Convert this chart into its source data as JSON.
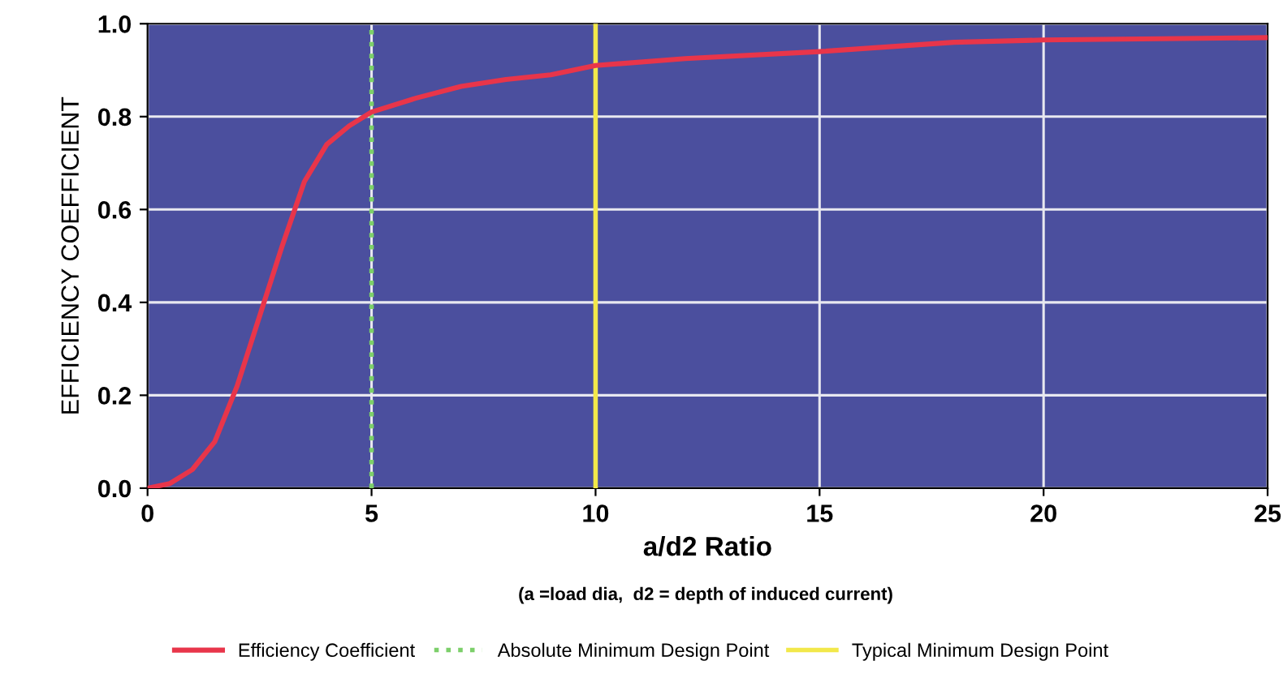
{
  "chart_data": {
    "type": "line",
    "xlabel": "a/d2 Ratio",
    "ylabel": "EFFICIENCY COEFFICIENT",
    "annotations": [
      "(a =load dia,  d2 = depth of induced current)"
    ],
    "series": [
      {
        "name": "Efficiency Coefficient",
        "color": "#e8354a",
        "x": [
          0,
          0.5,
          1,
          1.5,
          2,
          2.5,
          3,
          3.5,
          4,
          4.5,
          5,
          6,
          7,
          8,
          9,
          10,
          12,
          15,
          18,
          20,
          25
        ],
        "values": [
          0,
          0.01,
          0.04,
          0.1,
          0.22,
          0.37,
          0.52,
          0.66,
          0.74,
          0.78,
          0.81,
          0.84,
          0.865,
          0.88,
          0.89,
          0.91,
          0.925,
          0.94,
          0.96,
          0.965,
          0.97
        ]
      }
    ],
    "ref_lines": [
      {
        "axis": "x",
        "value": 5,
        "label": "Absolute Minimum Design Point",
        "color": "#7ccf6a",
        "line_style": "dotted"
      },
      {
        "axis": "x",
        "value": 10,
        "label": "Typical Minimum Design Point",
        "color": "#f2e84a",
        "line_style": "solid"
      }
    ],
    "xlim": [
      0,
      25
    ],
    "ylim": [
      0,
      1.0
    ],
    "xticks": [
      0,
      5,
      10,
      15,
      20,
      25
    ],
    "yticks": [
      {
        "value": 0,
        "label": "0.0"
      },
      {
        "value": 0.2,
        "label": "0.2"
      },
      {
        "value": 0.4,
        "label": "0.4"
      },
      {
        "value": 0.6,
        "label": "0.6"
      },
      {
        "value": 0.8,
        "label": "0.8"
      },
      {
        "value": 1.0,
        "label": "1.0"
      }
    ],
    "grid": true,
    "legend": "bottom",
    "line_style": "solid",
    "marker": "none"
  }
}
